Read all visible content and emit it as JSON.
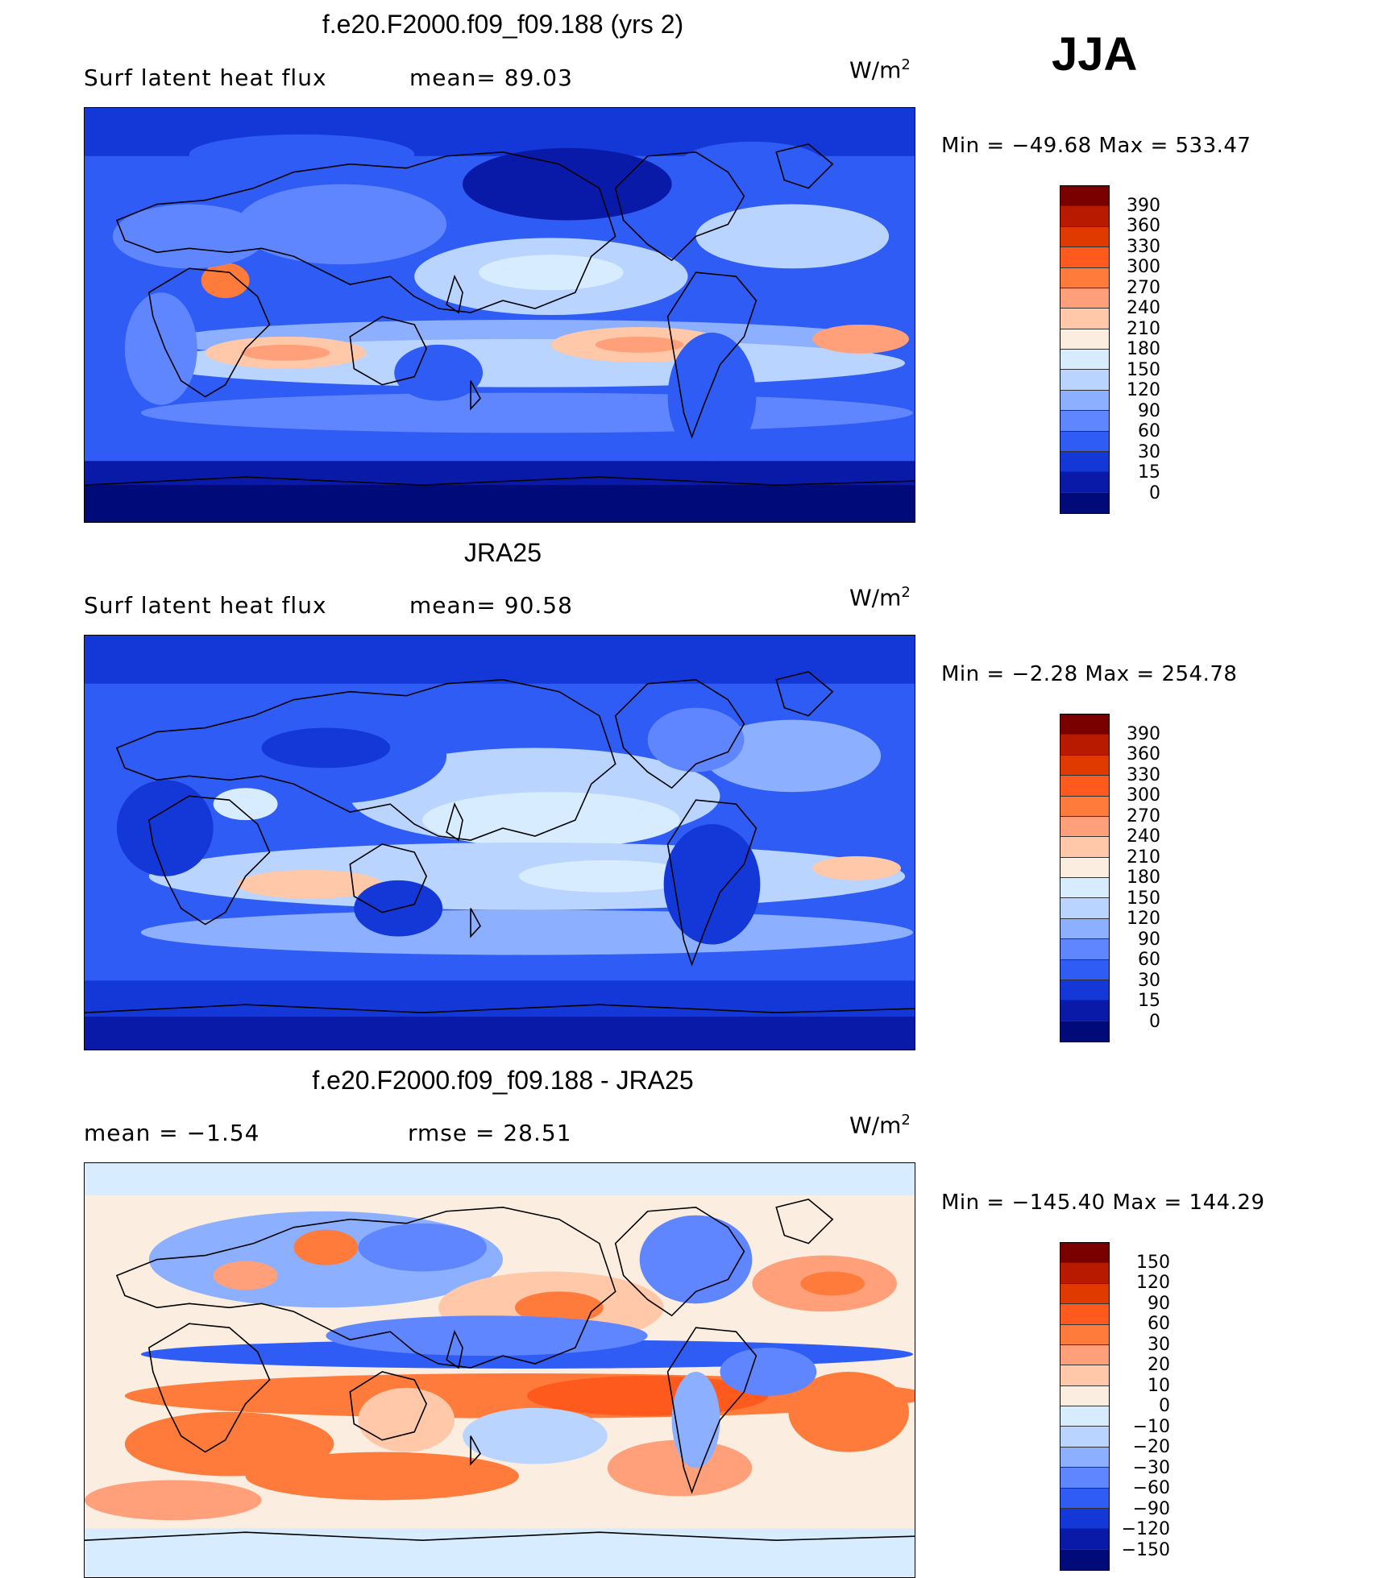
{
  "season": "JJA",
  "units": {
    "base": "W/m",
    "exp": "2"
  },
  "panels": [
    {
      "title": "f.e20.F2000.f09_f09.188 (yrs 2)",
      "left_label": "Surf  latent  heat  flux",
      "right_label": "mean=   89.03",
      "minmax": "Min  =  −49.68  Max  =  533.47",
      "colorbar": {
        "labels": [
          "390",
          "360",
          "330",
          "300",
          "270",
          "240",
          "210",
          "180",
          "150",
          "120",
          "90",
          "60",
          "30",
          "15",
          "0"
        ],
        "colors": [
          "#7a0000",
          "#b81a00",
          "#e03a00",
          "#ff5a1e",
          "#ff7b3c",
          "#ffa07a",
          "#ffc8a8",
          "#fbeee0",
          "#d8ecff",
          "#b8d4ff",
          "#8cb0ff",
          "#5f86ff",
          "#2f5cf5",
          "#1438d8",
          "#0a1aa8",
          "#000a78"
        ]
      }
    },
    {
      "title": "JRA25",
      "left_label": "Surf  latent  heat  flux",
      "right_label": "mean=   90.58",
      "minmax": "Min  =    −2.28  Max  =  254.78",
      "colorbar": {
        "labels": [
          "390",
          "360",
          "330",
          "300",
          "270",
          "240",
          "210",
          "180",
          "150",
          "120",
          "90",
          "60",
          "30",
          "15",
          "0"
        ],
        "colors": [
          "#7a0000",
          "#b81a00",
          "#e03a00",
          "#ff5a1e",
          "#ff7b3c",
          "#ffa07a",
          "#ffc8a8",
          "#fbeee0",
          "#d8ecff",
          "#b8d4ff",
          "#8cb0ff",
          "#5f86ff",
          "#2f5cf5",
          "#1438d8",
          "#0a1aa8",
          "#000a78"
        ]
      }
    },
    {
      "title": "f.e20.F2000.f09_f09.188 - JRA25",
      "left_label": "mean  =    −1.54",
      "right_label": "rmse  =    28.51",
      "minmax": "Min  =  −145.40  Max  =  144.29",
      "colorbar": {
        "labels": [
          "150",
          "120",
          "90",
          "60",
          "30",
          "20",
          "10",
          "0",
          "−10",
          "−20",
          "−30",
          "−60",
          "−90",
          "−120",
          "−150"
        ],
        "colors": [
          "#7a0000",
          "#b81a00",
          "#e03a00",
          "#ff5a1e",
          "#ff7b3c",
          "#ffa07a",
          "#ffc8a8",
          "#fbeee0",
          "#d8ecff",
          "#b8d4ff",
          "#8cb0ff",
          "#5f86ff",
          "#2f5cf5",
          "#1438d8",
          "#0a1aa8",
          "#000a78"
        ]
      }
    }
  ]
}
